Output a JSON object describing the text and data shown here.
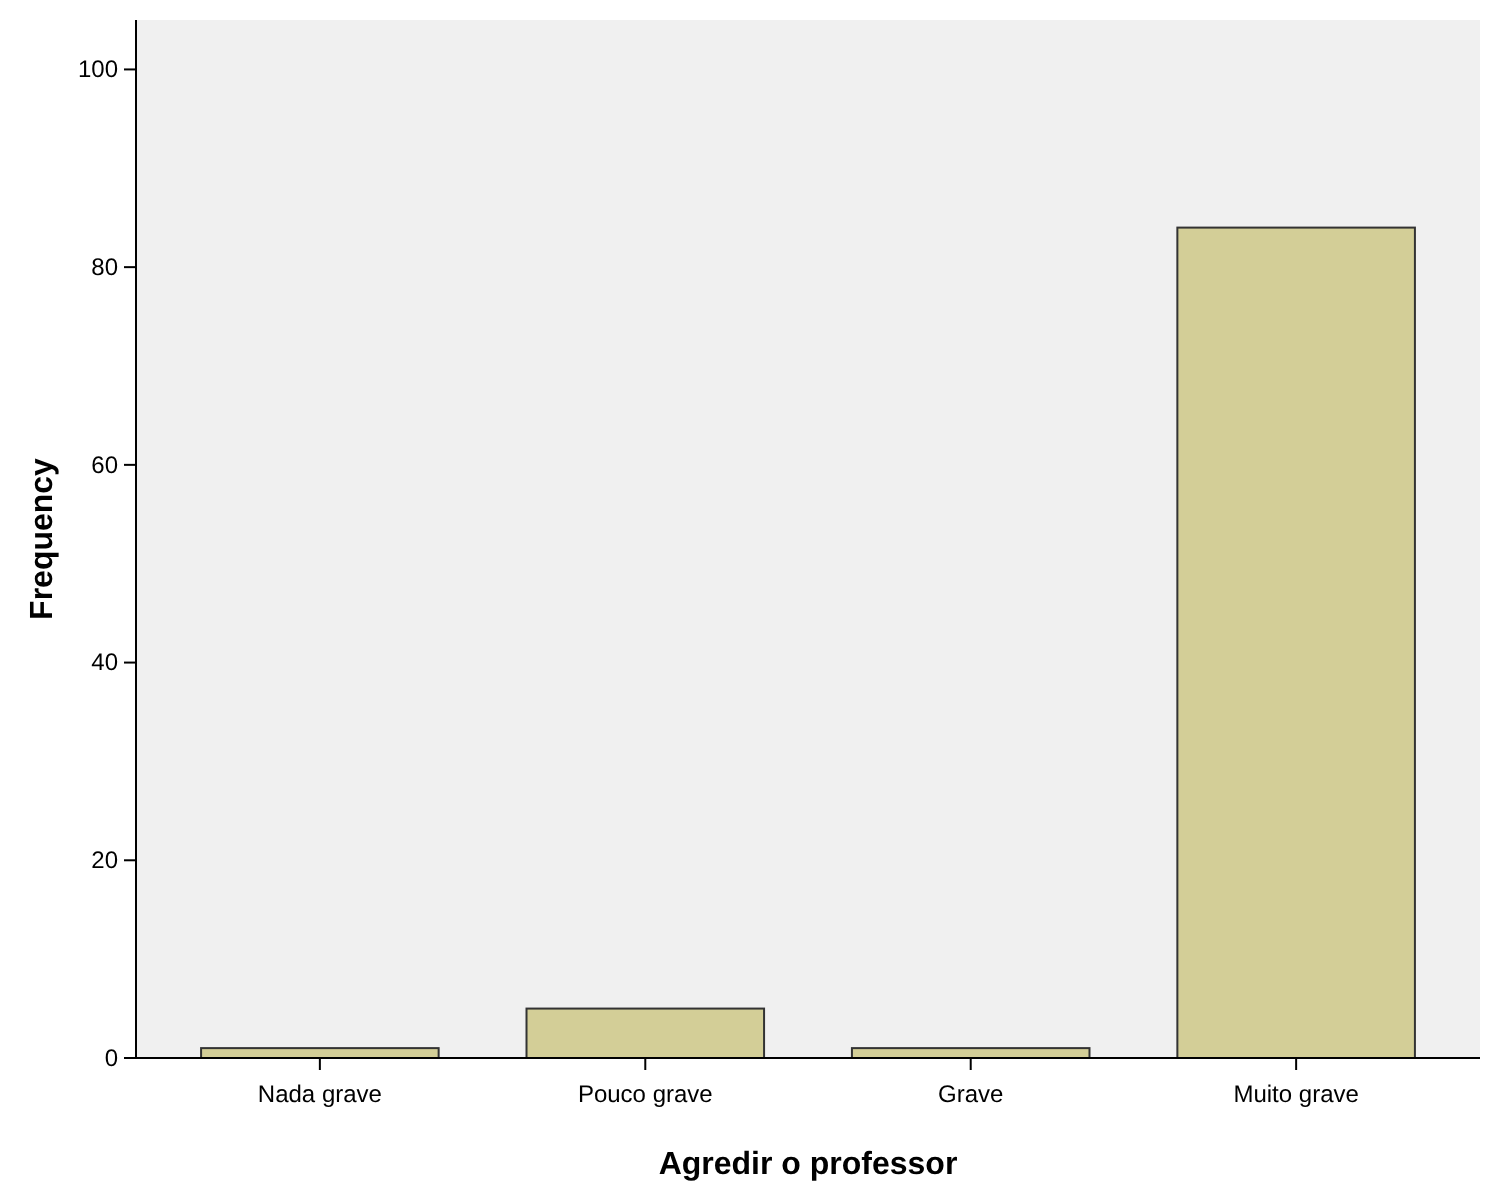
{
  "chart_data": {
    "type": "bar",
    "xlabel": "Agredir o professor",
    "ylabel": "Frequency",
    "categories": [
      "Nada grave",
      "Pouco grave",
      "Grave",
      "Muito grave"
    ],
    "values": [
      1,
      5,
      1,
      84
    ],
    "color": "#d3ce97",
    "ylim": [
      0,
      105
    ],
    "yticks": [
      0,
      20,
      40,
      60,
      80,
      100
    ],
    "grid": false
  }
}
